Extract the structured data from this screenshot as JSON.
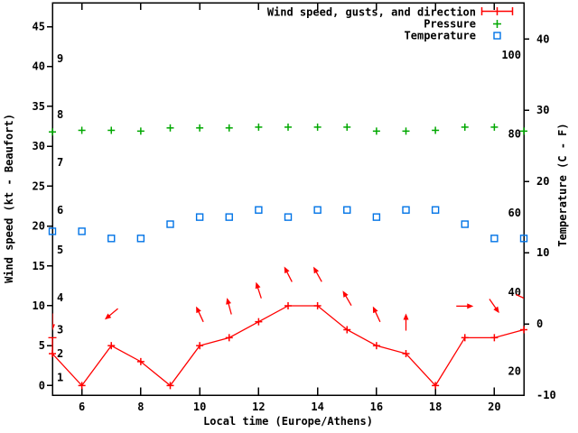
{
  "chart_data": {
    "type": "line",
    "title": "",
    "xlabel": "Local time (Europe/Athens)",
    "ylabel_left": "Wind speed (kt - Beaufort)",
    "ylabel_right": "Temperature (C - F)",
    "legend_position": "top-right-inside",
    "grid": false,
    "xlim": [
      5,
      21
    ],
    "ylim_kt": [
      -1.2,
      48
    ],
    "ylim_c": [
      -10,
      45.1
    ],
    "hours": [
      5,
      6,
      7,
      8,
      9,
      10,
      11,
      12,
      13,
      14,
      15,
      16,
      17,
      18,
      19,
      20,
      21
    ],
    "x_tick_labels": [
      6,
      8,
      10,
      12,
      14,
      16,
      18,
      20
    ],
    "left_tick_labels_kt": [
      0,
      5,
      10,
      15,
      20,
      25,
      30,
      35,
      40,
      45
    ],
    "right_tick_labels_c": [
      -10,
      0,
      10,
      20,
      30,
      40
    ],
    "beaufort_labels": [
      {
        "label": "1",
        "kt": 1
      },
      {
        "label": "2",
        "kt": 4
      },
      {
        "label": "3",
        "kt": 7
      },
      {
        "label": "4",
        "kt": 11
      },
      {
        "label": "5",
        "kt": 17
      },
      {
        "label": "6",
        "kt": 22
      },
      {
        "label": "7",
        "kt": 28
      },
      {
        "label": "8",
        "kt": 34
      },
      {
        "label": "9",
        "kt": 41
      }
    ],
    "fahrenheit_labels": [
      20,
      40,
      60,
      80,
      100
    ],
    "series": [
      {
        "name": "Wind speed, gusts, and direction",
        "color": "#ff0000",
        "marker": "plus-with-errorbars",
        "axis": "kt",
        "speed_kt": [
          4,
          0,
          5,
          3,
          0,
          5,
          6,
          8,
          10,
          10,
          7,
          5,
          4,
          0,
          6,
          6,
          7
        ],
        "gust_kt": [
          6,
          0,
          5,
          3,
          0,
          5,
          6,
          8,
          10,
          10,
          7,
          5,
          4,
          0,
          6,
          6,
          7
        ],
        "direction_deg_cw_from_up": {
          "5": 180,
          "7": 230,
          "10": 335,
          "11": 345,
          "12": 342,
          "13": 333,
          "14": 331,
          "15": 330,
          "16": 335,
          "17": 0,
          "19": 90,
          "20": 145,
          "21": 115
        }
      },
      {
        "name": "Pressure",
        "color": "#00a800",
        "marker": "plus",
        "axis": "kt-equivalent",
        "note": "pressure has no labeled axis in the image; plotted as a nearly flat row of marks",
        "level_kt": [
          31.8,
          32,
          32,
          31.9,
          32.3,
          32.3,
          32.3,
          32.4,
          32.4,
          32.4,
          32.4,
          31.9,
          31.9,
          32,
          32.4,
          32.4,
          31.9
        ]
      },
      {
        "name": "Temperature",
        "color": "#0073e6",
        "marker": "open-square",
        "axis": "celsius",
        "celsius": [
          13,
          13,
          12,
          12,
          14,
          15,
          15,
          16,
          15,
          16,
          16,
          15,
          16,
          16,
          14,
          12,
          12
        ]
      }
    ]
  }
}
